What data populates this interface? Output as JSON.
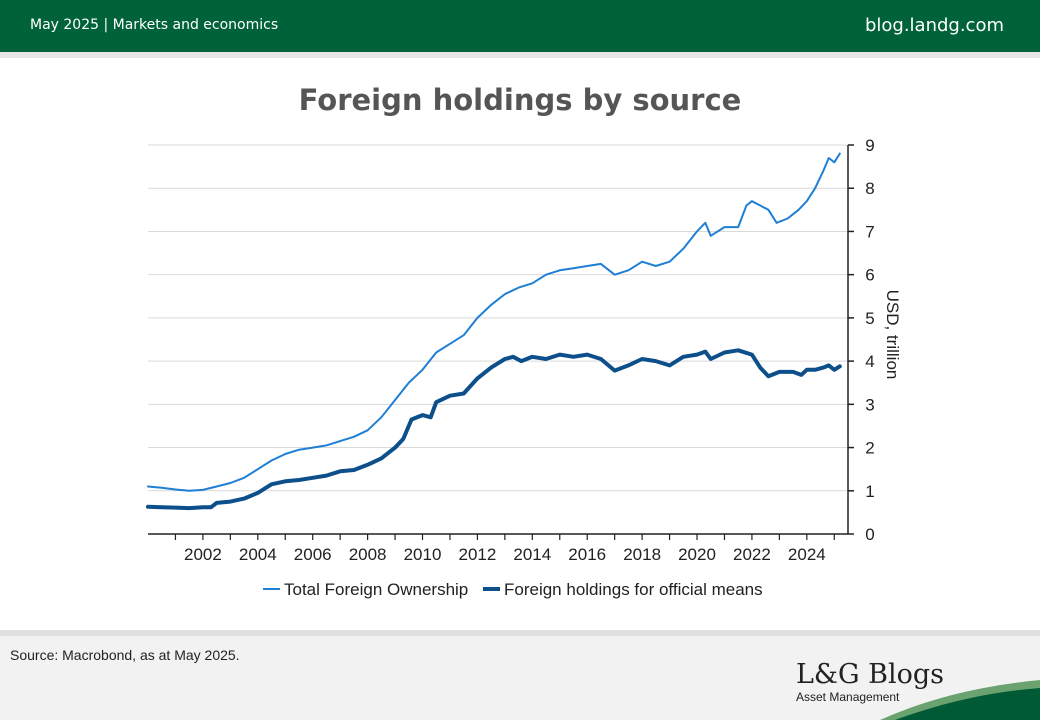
{
  "header": {
    "left_text": "May 2025 | Markets and economics",
    "right_text": "blog.landg.com",
    "background": "#006238"
  },
  "footer": {
    "source": "Source: Macrobond, as at May 2025.",
    "brand_name": "L&G Blogs",
    "brand_sub": "Asset Management"
  },
  "chart_data": {
    "type": "line",
    "title": "Foreign holdings by source",
    "xlabel": "",
    "ylabel": "USD, trillion",
    "xlim": [
      2000.0,
      2025.5
    ],
    "ylim": [
      0,
      9
    ],
    "x_ticks": [
      "2002",
      "2004",
      "2006",
      "2008",
      "2010",
      "2012",
      "2014",
      "2016",
      "2018",
      "2020",
      "2022",
      "2024"
    ],
    "y_ticks": [
      "0",
      "1",
      "2",
      "3",
      "4",
      "5",
      "6",
      "7",
      "8",
      "9"
    ],
    "y_axis_side": "right",
    "grid": "horizontal",
    "legend_position": "bottom",
    "series": [
      {
        "name": "Total Foreign Ownership",
        "color": "#1f7fd4",
        "line_width": 2,
        "points": [
          [
            2000.0,
            1.1
          ],
          [
            2000.5,
            1.07
          ],
          [
            2001.0,
            1.03
          ],
          [
            2001.5,
            1.0
          ],
          [
            2002.0,
            1.02
          ],
          [
            2002.5,
            1.1
          ],
          [
            2003.0,
            1.18
          ],
          [
            2003.5,
            1.3
          ],
          [
            2004.0,
            1.5
          ],
          [
            2004.5,
            1.7
          ],
          [
            2005.0,
            1.85
          ],
          [
            2005.5,
            1.95
          ],
          [
            2006.0,
            2.0
          ],
          [
            2006.5,
            2.05
          ],
          [
            2007.0,
            2.15
          ],
          [
            2007.5,
            2.25
          ],
          [
            2008.0,
            2.4
          ],
          [
            2008.5,
            2.7
          ],
          [
            2009.0,
            3.1
          ],
          [
            2009.5,
            3.5
          ],
          [
            2010.0,
            3.8
          ],
          [
            2010.5,
            4.2
          ],
          [
            2011.0,
            4.4
          ],
          [
            2011.5,
            4.6
          ],
          [
            2012.0,
            5.0
          ],
          [
            2012.5,
            5.3
          ],
          [
            2013.0,
            5.55
          ],
          [
            2013.5,
            5.7
          ],
          [
            2014.0,
            5.8
          ],
          [
            2014.5,
            6.0
          ],
          [
            2015.0,
            6.1
          ],
          [
            2015.5,
            6.15
          ],
          [
            2016.0,
            6.2
          ],
          [
            2016.5,
            6.25
          ],
          [
            2017.0,
            6.0
          ],
          [
            2017.5,
            6.1
          ],
          [
            2018.0,
            6.3
          ],
          [
            2018.5,
            6.2
          ],
          [
            2019.0,
            6.3
          ],
          [
            2019.5,
            6.6
          ],
          [
            2020.0,
            7.0
          ],
          [
            2020.3,
            7.2
          ],
          [
            2020.5,
            6.9
          ],
          [
            2021.0,
            7.1
          ],
          [
            2021.5,
            7.1
          ],
          [
            2021.8,
            7.6
          ],
          [
            2022.0,
            7.7
          ],
          [
            2022.3,
            7.6
          ],
          [
            2022.6,
            7.5
          ],
          [
            2022.9,
            7.2
          ],
          [
            2023.3,
            7.3
          ],
          [
            2023.7,
            7.5
          ],
          [
            2024.0,
            7.7
          ],
          [
            2024.3,
            8.0
          ],
          [
            2024.6,
            8.4
          ],
          [
            2024.8,
            8.7
          ],
          [
            2025.0,
            8.6
          ],
          [
            2025.2,
            8.8
          ]
        ]
      },
      {
        "name": "Foreign holdings for official means",
        "color": "#0d4f8b",
        "line_width": 4,
        "points": [
          [
            2000.0,
            0.63
          ],
          [
            2000.5,
            0.62
          ],
          [
            2001.0,
            0.61
          ],
          [
            2001.5,
            0.6
          ],
          [
            2002.0,
            0.62
          ],
          [
            2002.3,
            0.62
          ],
          [
            2002.5,
            0.72
          ],
          [
            2003.0,
            0.75
          ],
          [
            2003.5,
            0.82
          ],
          [
            2004.0,
            0.95
          ],
          [
            2004.5,
            1.15
          ],
          [
            2005.0,
            1.22
          ],
          [
            2005.5,
            1.25
          ],
          [
            2006.0,
            1.3
          ],
          [
            2006.5,
            1.35
          ],
          [
            2007.0,
            1.45
          ],
          [
            2007.5,
            1.48
          ],
          [
            2008.0,
            1.6
          ],
          [
            2008.5,
            1.75
          ],
          [
            2009.0,
            2.0
          ],
          [
            2009.3,
            2.2
          ],
          [
            2009.6,
            2.65
          ],
          [
            2010.0,
            2.75
          ],
          [
            2010.3,
            2.7
          ],
          [
            2010.5,
            3.05
          ],
          [
            2011.0,
            3.2
          ],
          [
            2011.5,
            3.25
          ],
          [
            2012.0,
            3.6
          ],
          [
            2012.5,
            3.85
          ],
          [
            2013.0,
            4.05
          ],
          [
            2013.3,
            4.1
          ],
          [
            2013.6,
            4.0
          ],
          [
            2014.0,
            4.1
          ],
          [
            2014.5,
            4.05
          ],
          [
            2015.0,
            4.15
          ],
          [
            2015.5,
            4.1
          ],
          [
            2016.0,
            4.15
          ],
          [
            2016.5,
            4.05
          ],
          [
            2017.0,
            3.78
          ],
          [
            2017.5,
            3.9
          ],
          [
            2018.0,
            4.05
          ],
          [
            2018.5,
            4.0
          ],
          [
            2019.0,
            3.9
          ],
          [
            2019.5,
            4.1
          ],
          [
            2020.0,
            4.15
          ],
          [
            2020.3,
            4.22
          ],
          [
            2020.5,
            4.05
          ],
          [
            2021.0,
            4.2
          ],
          [
            2021.5,
            4.25
          ],
          [
            2022.0,
            4.15
          ],
          [
            2022.3,
            3.85
          ],
          [
            2022.6,
            3.65
          ],
          [
            2023.0,
            3.75
          ],
          [
            2023.5,
            3.75
          ],
          [
            2023.8,
            3.68
          ],
          [
            2024.0,
            3.8
          ],
          [
            2024.3,
            3.8
          ],
          [
            2024.6,
            3.85
          ],
          [
            2024.8,
            3.9
          ],
          [
            2025.0,
            3.8
          ],
          [
            2025.2,
            3.88
          ]
        ]
      }
    ]
  }
}
